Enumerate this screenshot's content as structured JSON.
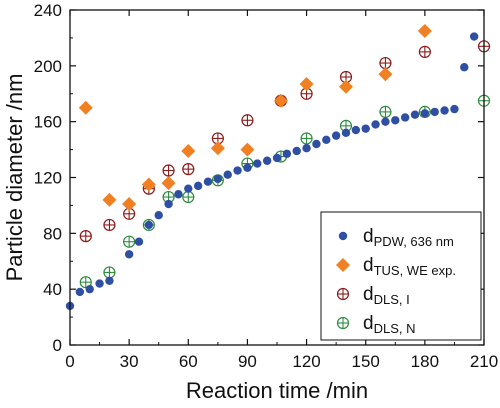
{
  "chart_data": {
    "type": "scatter",
    "xlabel": "Reaction time /min",
    "ylabel": "Particle diameter /nm",
    "xlim": [
      0,
      210
    ],
    "ylim": [
      0,
      240
    ],
    "xticks": [
      0,
      30,
      60,
      90,
      120,
      150,
      180,
      210
    ],
    "yticks": [
      0,
      40,
      80,
      120,
      160,
      200,
      240
    ],
    "grid": false,
    "legend_position": "bottom-right",
    "series": [
      {
        "name_main": "d",
        "name_sub": "PDW, 636 nm",
        "marker": "filled-circle",
        "color": "#2f4fa3",
        "points": [
          [
            0,
            28
          ],
          [
            5,
            38
          ],
          [
            10,
            40
          ],
          [
            15,
            44
          ],
          [
            20,
            46
          ],
          [
            30,
            65
          ],
          [
            35,
            74
          ],
          [
            40,
            86
          ],
          [
            45,
            93
          ],
          [
            50,
            101
          ],
          [
            55,
            108
          ],
          [
            60,
            112
          ],
          [
            65,
            114
          ],
          [
            70,
            117
          ],
          [
            75,
            119
          ],
          [
            80,
            122
          ],
          [
            85,
            125
          ],
          [
            90,
            127
          ],
          [
            95,
            130
          ],
          [
            100,
            132
          ],
          [
            105,
            134
          ],
          [
            110,
            137
          ],
          [
            115,
            139
          ],
          [
            120,
            141
          ],
          [
            125,
            144
          ],
          [
            130,
            147
          ],
          [
            135,
            150
          ],
          [
            140,
            152
          ],
          [
            145,
            154
          ],
          [
            150,
            155
          ],
          [
            155,
            158
          ],
          [
            160,
            160
          ],
          [
            165,
            161
          ],
          [
            170,
            163
          ],
          [
            175,
            165
          ],
          [
            180,
            166
          ],
          [
            185,
            167
          ],
          [
            190,
            168
          ],
          [
            195,
            169
          ],
          [
            200,
            199
          ],
          [
            205,
            221
          ]
        ]
      },
      {
        "name_main": "d",
        "name_sub": "TUS, WE exp.",
        "marker": "filled-diamond",
        "color": "#f08022",
        "points": [
          [
            8,
            170
          ],
          [
            20,
            104
          ],
          [
            30,
            101
          ],
          [
            40,
            115
          ],
          [
            50,
            116
          ],
          [
            60,
            139
          ],
          [
            75,
            141
          ],
          [
            90,
            140
          ],
          [
            107,
            175
          ],
          [
            120,
            187
          ],
          [
            140,
            185
          ],
          [
            160,
            194
          ],
          [
            180,
            225
          ]
        ]
      },
      {
        "name_main": "d",
        "name_sub": "DLS, I",
        "marker": "crossed-circle",
        "color": "#8b1a1a",
        "points": [
          [
            8,
            78
          ],
          [
            20,
            86
          ],
          [
            30,
            94
          ],
          [
            40,
            112
          ],
          [
            50,
            125
          ],
          [
            60,
            126
          ],
          [
            75,
            148
          ],
          [
            90,
            161
          ],
          [
            107,
            175
          ],
          [
            120,
            180
          ],
          [
            140,
            192
          ],
          [
            160,
            202
          ],
          [
            180,
            210
          ],
          [
            210,
            214
          ]
        ]
      },
      {
        "name_main": "d",
        "name_sub": "DLS, N",
        "marker": "crossed-circle",
        "color": "#2e8b3e",
        "points": [
          [
            8,
            45
          ],
          [
            20,
            52
          ],
          [
            30,
            74
          ],
          [
            40,
            86
          ],
          [
            50,
            106
          ],
          [
            60,
            106
          ],
          [
            75,
            118
          ],
          [
            90,
            130
          ],
          [
            107,
            135
          ],
          [
            120,
            148
          ],
          [
            140,
            157
          ],
          [
            160,
            167
          ],
          [
            180,
            167
          ],
          [
            210,
            175
          ]
        ]
      }
    ]
  }
}
